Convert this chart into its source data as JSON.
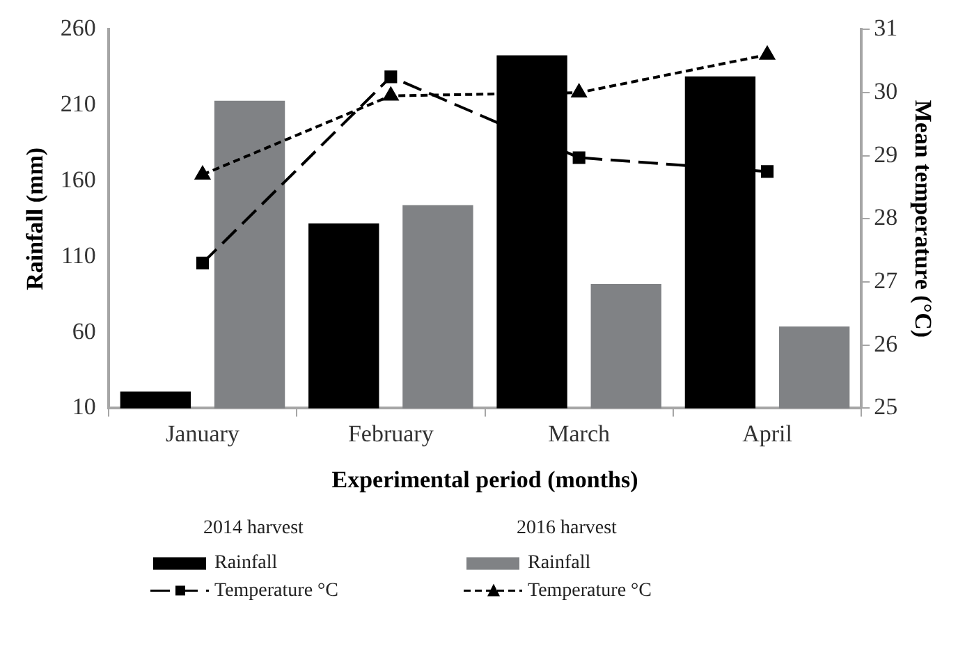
{
  "chart_data": {
    "type": "bar",
    "xlabel": "Experimental period (months)",
    "ylabel": "Rainfall (mm)",
    "y2label": "Mean temperature (°C)",
    "categories": [
      "January",
      "February",
      "March",
      "April"
    ],
    "series": [
      {
        "name": "Rainfall",
        "color": "#000000",
        "values": [
          21,
          132,
          243,
          229
        ]
      },
      {
        "name": "Rainfall",
        "color": "#808285",
        "values": [
          213,
          144,
          92,
          64
        ]
      },
      {
        "name": "Temperature °C",
        "type": "line",
        "axis": "y2",
        "color": "#000000",
        "marker": "square",
        "line_style": "dashed",
        "values": [
          27.3,
          30.25,
          28.97,
          28.75
        ]
      },
      {
        "name": "Temperature °C",
        "type": "line",
        "axis": "y2",
        "color": "#000000",
        "marker": "triangle",
        "line_style": "dotted",
        "values": [
          28.7,
          29.95,
          30.0,
          30.6
        ]
      }
    ],
    "ylim": [
      10,
      260
    ],
    "yticks": [
      10,
      60,
      110,
      160,
      210,
      260
    ],
    "y2lim": [
      25,
      31
    ],
    "y2ticks": [
      25,
      26,
      27,
      28,
      29,
      30,
      31
    ],
    "legend": "bottom",
    "annotations": [
      "2014 harvest",
      "2016 harvest"
    ]
  }
}
